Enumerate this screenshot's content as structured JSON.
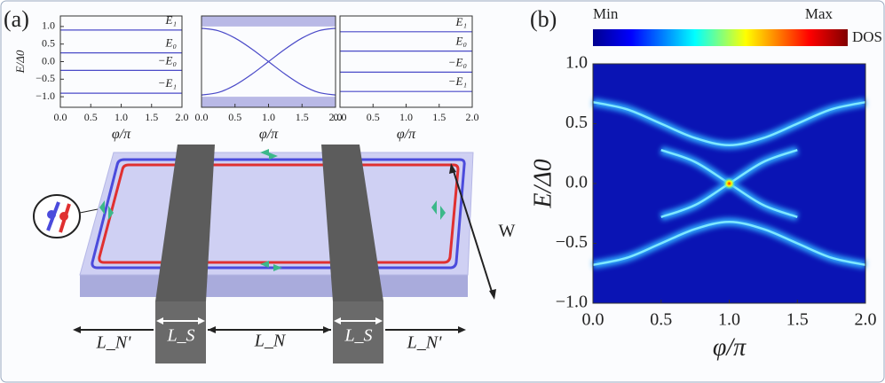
{
  "panel_labels": [
    "(a)",
    "(b)"
  ],
  "chart_data": [
    {
      "type": "line",
      "ylabel": "E/Δ0",
      "xlabel": "φ/π",
      "xlim": [
        0,
        2
      ],
      "xticks": [
        {
          "value": 0,
          "label": "0.0"
        },
        {
          "value": 0.5,
          "label": "0.5"
        },
        {
          "value": 1,
          "label": "1.0"
        },
        {
          "value": 1.5,
          "label": "1.5"
        },
        {
          "value": 2,
          "label": "2.0"
        }
      ],
      "ylim": [
        -1.3,
        1.3
      ],
      "yticks": [
        {
          "value": 1,
          "label": "1.0"
        },
        {
          "value": 0.5,
          "label": "0.5"
        },
        {
          "value": 0,
          "label": "0.0"
        },
        {
          "value": -0.5,
          "label": "−0.5"
        },
        {
          "value": -1,
          "label": "−1.0"
        }
      ],
      "series": [
        {
          "name": "E₁",
          "color": "#4a4ac8",
          "x": [
            0,
            2
          ],
          "values": [
            0.9,
            0.9
          ]
        },
        {
          "name": "E₀",
          "color": "#4a4ac8",
          "x": [
            0,
            2
          ],
          "values": [
            0.25,
            0.25
          ]
        },
        {
          "name": "−E₀",
          "color": "#4a4ac8",
          "x": [
            0,
            2
          ],
          "values": [
            -0.25,
            -0.25
          ]
        },
        {
          "name": "−E₁",
          "color": "#4a4ac8",
          "x": [
            0,
            2
          ],
          "values": [
            -0.9,
            -0.9
          ]
        }
      ]
    },
    {
      "type": "line",
      "xlabel": "φ/π",
      "xlim": [
        0,
        2
      ],
      "xticks": [
        {
          "value": 0,
          "label": "0.0"
        },
        {
          "value": 0.5,
          "label": "0.5"
        },
        {
          "value": 1,
          "label": "1.0"
        },
        {
          "value": 1.5,
          "label": "1.5"
        },
        {
          "value": 2,
          "label": "2.0"
        }
      ],
      "ylim": [
        -1.3,
        1.3
      ],
      "gap_edges": [
        -1,
        1
      ],
      "series": [
        {
          "color": "#4a4ac8",
          "x": [
            0,
            0.25,
            0.5,
            0.75,
            1,
            1.25,
            1.5,
            1.75,
            2
          ],
          "values": [
            0.95,
            0.88,
            0.67,
            0.36,
            0,
            -0.36,
            -0.67,
            -0.88,
            -0.95
          ]
        },
        {
          "color": "#4a4ac8",
          "x": [
            0,
            0.25,
            0.5,
            0.75,
            1,
            1.25,
            1.5,
            1.75,
            2
          ],
          "values": [
            -0.95,
            -0.88,
            -0.67,
            -0.36,
            0,
            0.36,
            0.67,
            0.88,
            0.95
          ]
        }
      ]
    },
    {
      "type": "line",
      "xlabel": "φ/π",
      "xlim": [
        0,
        2
      ],
      "xticks": [
        {
          "value": 0,
          "label": "0.0"
        },
        {
          "value": 0.5,
          "label": "0.5"
        },
        {
          "value": 1,
          "label": "1.0"
        },
        {
          "value": 1.5,
          "label": "1.5"
        },
        {
          "value": 2,
          "label": "2.0"
        }
      ],
      "ylim": [
        -1.3,
        1.3
      ],
      "series": [
        {
          "name": "E₁",
          "color": "#4a4ac8",
          "x": [
            0,
            2
          ],
          "values": [
            0.85,
            0.85
          ]
        },
        {
          "name": "E₀",
          "color": "#4a4ac8",
          "x": [
            0,
            2
          ],
          "values": [
            0.3,
            0.3
          ]
        },
        {
          "name": "−E₀",
          "color": "#4a4ac8",
          "x": [
            0,
            2
          ],
          "values": [
            -0.3,
            -0.3
          ]
        },
        {
          "name": "−E₁",
          "color": "#4a4ac8",
          "x": [
            0,
            2
          ],
          "values": [
            -0.85,
            -0.85
          ]
        }
      ]
    },
    {
      "type": "dos",
      "ylabel": "E/Δ0",
      "xlabel": "φ/π",
      "colorbar": {
        "min_label": "Min",
        "max_label": "Max",
        "label": "DOS (a.u.)"
      },
      "xlim": [
        0,
        2
      ],
      "xticks": [
        {
          "value": 0,
          "label": "0.0"
        },
        {
          "value": 0.5,
          "label": "0.5"
        },
        {
          "value": 1,
          "label": "1.0"
        },
        {
          "value": 1.5,
          "label": "1.5"
        },
        {
          "value": 2,
          "label": "2.0"
        }
      ],
      "ylim": [
        -1,
        1
      ],
      "yticks": [
        {
          "value": 1,
          "label": "1.0"
        },
        {
          "value": 0.5,
          "label": "0.5"
        },
        {
          "value": 0,
          "label": "0.0"
        },
        {
          "value": -0.5,
          "label": "−0.5"
        },
        {
          "value": -1,
          "label": "−1.0"
        }
      ],
      "series": [
        {
          "color": "#7fe8ff",
          "x": [
            0,
            0.25,
            0.5,
            0.75,
            1,
            1.25,
            1.5,
            1.75,
            2
          ],
          "values": [
            0.68,
            0.62,
            0.5,
            0.38,
            0.32,
            0.38,
            0.5,
            0.62,
            0.68
          ]
        },
        {
          "color": "#7fe8ff",
          "x": [
            0,
            0.25,
            0.5,
            0.75,
            1,
            1.25,
            1.5,
            1.75,
            2
          ],
          "values": [
            -0.68,
            -0.62,
            -0.5,
            -0.38,
            -0.32,
            -0.38,
            -0.5,
            -0.62,
            -0.68
          ]
        },
        {
          "color": "#7fe8ff",
          "x": [
            0.5,
            0.75,
            1,
            1.25,
            1.5
          ],
          "values": [
            0.28,
            0.18,
            0,
            -0.18,
            -0.28
          ]
        },
        {
          "color": "#7fe8ff",
          "x": [
            0.5,
            0.75,
            1,
            1.25,
            1.5
          ],
          "values": [
            -0.28,
            -0.18,
            0,
            0.18,
            0.28
          ]
        }
      ]
    }
  ],
  "diagram": {
    "width_label": "W",
    "left_lead_label": "L_N'",
    "left_sc_label": "L_S",
    "middle_label": "L_N",
    "right_sc_label": "L_S",
    "right_lead_label": "L_N'"
  }
}
